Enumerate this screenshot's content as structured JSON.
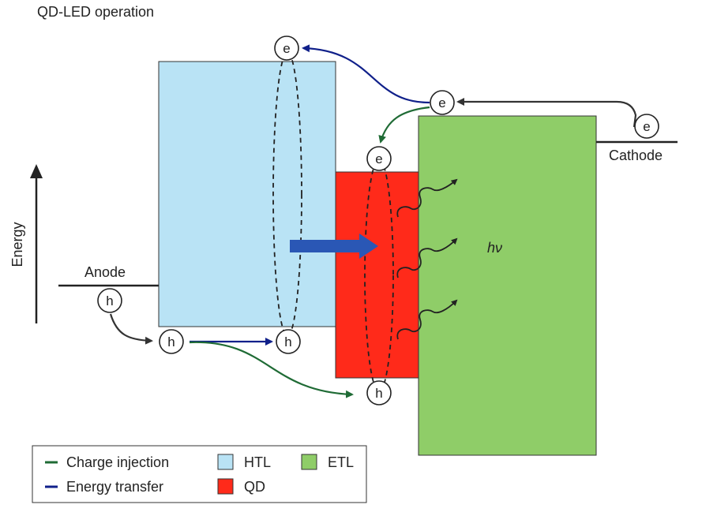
{
  "title": "QD-LED operation",
  "axis_label": "Energy",
  "electrodes": {
    "anode": "Anode",
    "cathode": "Cathode"
  },
  "carriers": {
    "electron": "e",
    "hole": "h"
  },
  "emission_label": "hν",
  "legend": {
    "charge_injection": "Charge injection",
    "energy_transfer": "Energy transfer",
    "htl": "HTL",
    "qd": "QD",
    "etl": "ETL"
  },
  "colors": {
    "htl": "#b9e3f5",
    "qd": "#ff2a1a",
    "etl": "#8fcd68",
    "charge_injection": "#1f6b35",
    "energy_transfer": "#10208a",
    "big_arrow": "#2a57b5",
    "neutral_arrow": "#333333"
  }
}
